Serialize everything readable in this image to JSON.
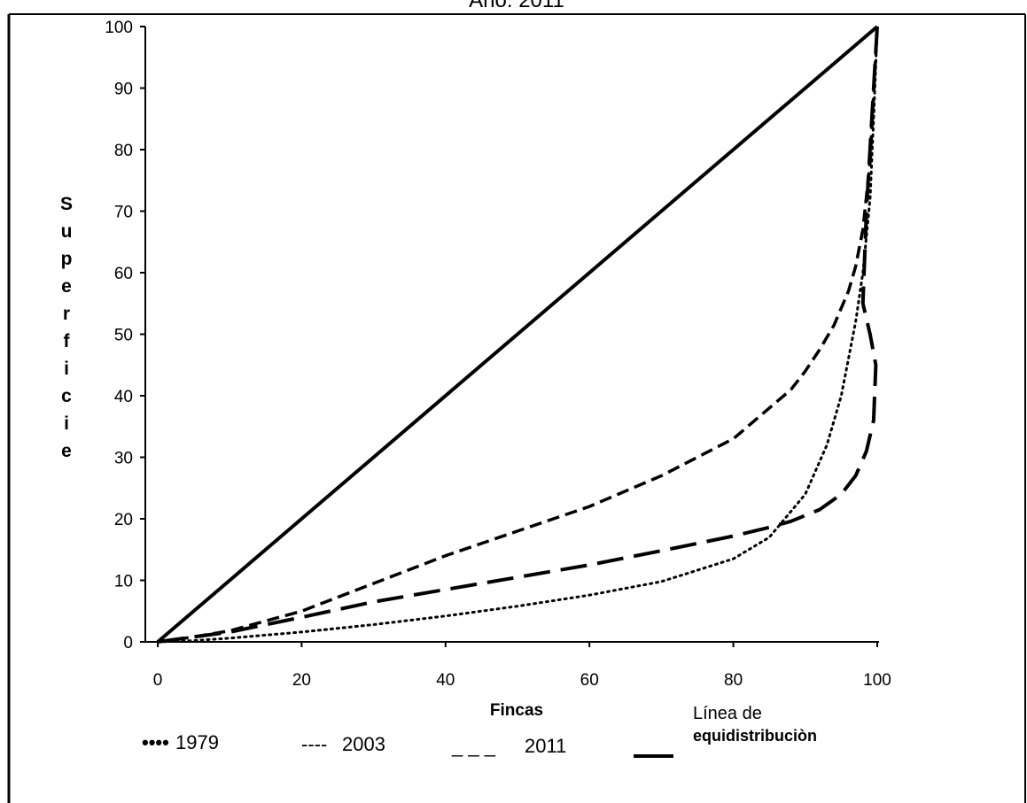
{
  "chart_data": {
    "type": "line",
    "title": "Año: 2011",
    "xlabel": "Fincas",
    "ylabel": "Superficie",
    "xlim": [
      0,
      100
    ],
    "ylim": [
      0,
      100
    ],
    "xticks": [
      0,
      20,
      40,
      60,
      80,
      100
    ],
    "yticks": [
      0,
      10,
      20,
      30,
      40,
      50,
      60,
      70,
      80,
      90,
      100
    ],
    "grid": false,
    "legend_position": "bottom",
    "series": [
      {
        "name": "1979",
        "style": "dotted",
        "color": "#000000",
        "x": [
          0,
          5,
          10,
          20,
          30,
          40,
          50,
          60,
          70,
          80,
          85,
          90,
          93,
          95,
          97,
          98,
          99,
          99.5,
          100
        ],
        "y": [
          0,
          0.2,
          0.6,
          1.6,
          2.8,
          4.2,
          5.8,
          7.6,
          9.8,
          13.5,
          17,
          24,
          32,
          40,
          52,
          60,
          72,
          85,
          100
        ]
      },
      {
        "name": "2003",
        "style": "dashed",
        "color": "#000000",
        "x": [
          0,
          5,
          10,
          20,
          30,
          40,
          50,
          60,
          70,
          80,
          85,
          88,
          90,
          92,
          94,
          96,
          97,
          98,
          99,
          100
        ],
        "y": [
          0,
          0.8,
          1.8,
          5,
          9.5,
          14,
          18,
          22,
          27,
          33,
          38,
          41,
          44,
          47.5,
          51.5,
          57,
          61,
          67,
          78,
          100
        ]
      },
      {
        "name": "2011",
        "style": "long-dashed",
        "color": "#000000",
        "x": [
          0,
          5,
          10,
          20,
          30,
          40,
          50,
          60,
          70,
          80,
          85,
          88,
          92,
          95,
          97,
          98.5,
          99.5,
          99.8,
          99,
          98,
          98.5,
          99.5,
          100
        ],
        "y": [
          0,
          0.8,
          1.6,
          4,
          6.5,
          8.5,
          10.5,
          12.5,
          14.8,
          17.2,
          18.6,
          19.6,
          21.5,
          24,
          27,
          31,
          36,
          45,
          50,
          55,
          70,
          90,
          100
        ]
      },
      {
        "name": "Línea de equidistribuciòn",
        "style": "solid",
        "color": "#000000",
        "x": [
          0,
          100
        ],
        "y": [
          0,
          100
        ]
      }
    ]
  },
  "legend": {
    "items": [
      {
        "sample": "••••",
        "label": "1979"
      },
      {
        "sample": "----",
        "label": "2003"
      },
      {
        "sample": "_ _ _",
        "label": "2011"
      },
      {
        "sample": "",
        "label_line1": "Línea de",
        "label_line2": "equidistribuciòn"
      }
    ]
  }
}
